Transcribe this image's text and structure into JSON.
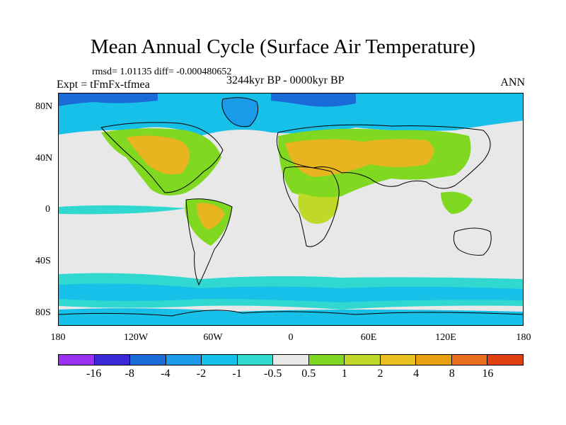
{
  "title": "Mean Annual Cycle (Surface Air Temperature)",
  "stats": "rmsd= 1.01135 diff= -0.000480652",
  "experiment": "Expt = tFmFx-tfmea",
  "period": "3244kyr BP - 0000kyr BP",
  "season": "ANN",
  "lat_labels": [
    "80N",
    "40N",
    "0",
    "40S",
    "80S"
  ],
  "lon_labels": [
    "180",
    "120W",
    "60W",
    "0",
    "60E",
    "120E",
    "180"
  ],
  "colorbar": {
    "labels": [
      "-16",
      "-8",
      "-4",
      "-2",
      "-1",
      "-0.5",
      "0.5",
      "1",
      "2",
      "4",
      "8",
      "16"
    ],
    "colors": [
      "#9a30f0",
      "#3a28d8",
      "#1a6ad8",
      "#1a9ae8",
      "#16c0e8",
      "#30d8d0",
      "#e8e8e8",
      "#80d820",
      "#c0d828",
      "#e8c020",
      "#e8a010",
      "#e87020",
      "#e04010"
    ]
  },
  "colors": {
    "background_land": "#e8e8e8",
    "warm_light": "#80d820",
    "warm_mid": "#c0d828",
    "warm_high": "#e8b420",
    "cool_light": "#30d8d0",
    "cool_mid": "#16c0e8",
    "cool_deep": "#1a9ae8",
    "cool_deeper": "#1a6ad8",
    "coast": "#000000"
  }
}
